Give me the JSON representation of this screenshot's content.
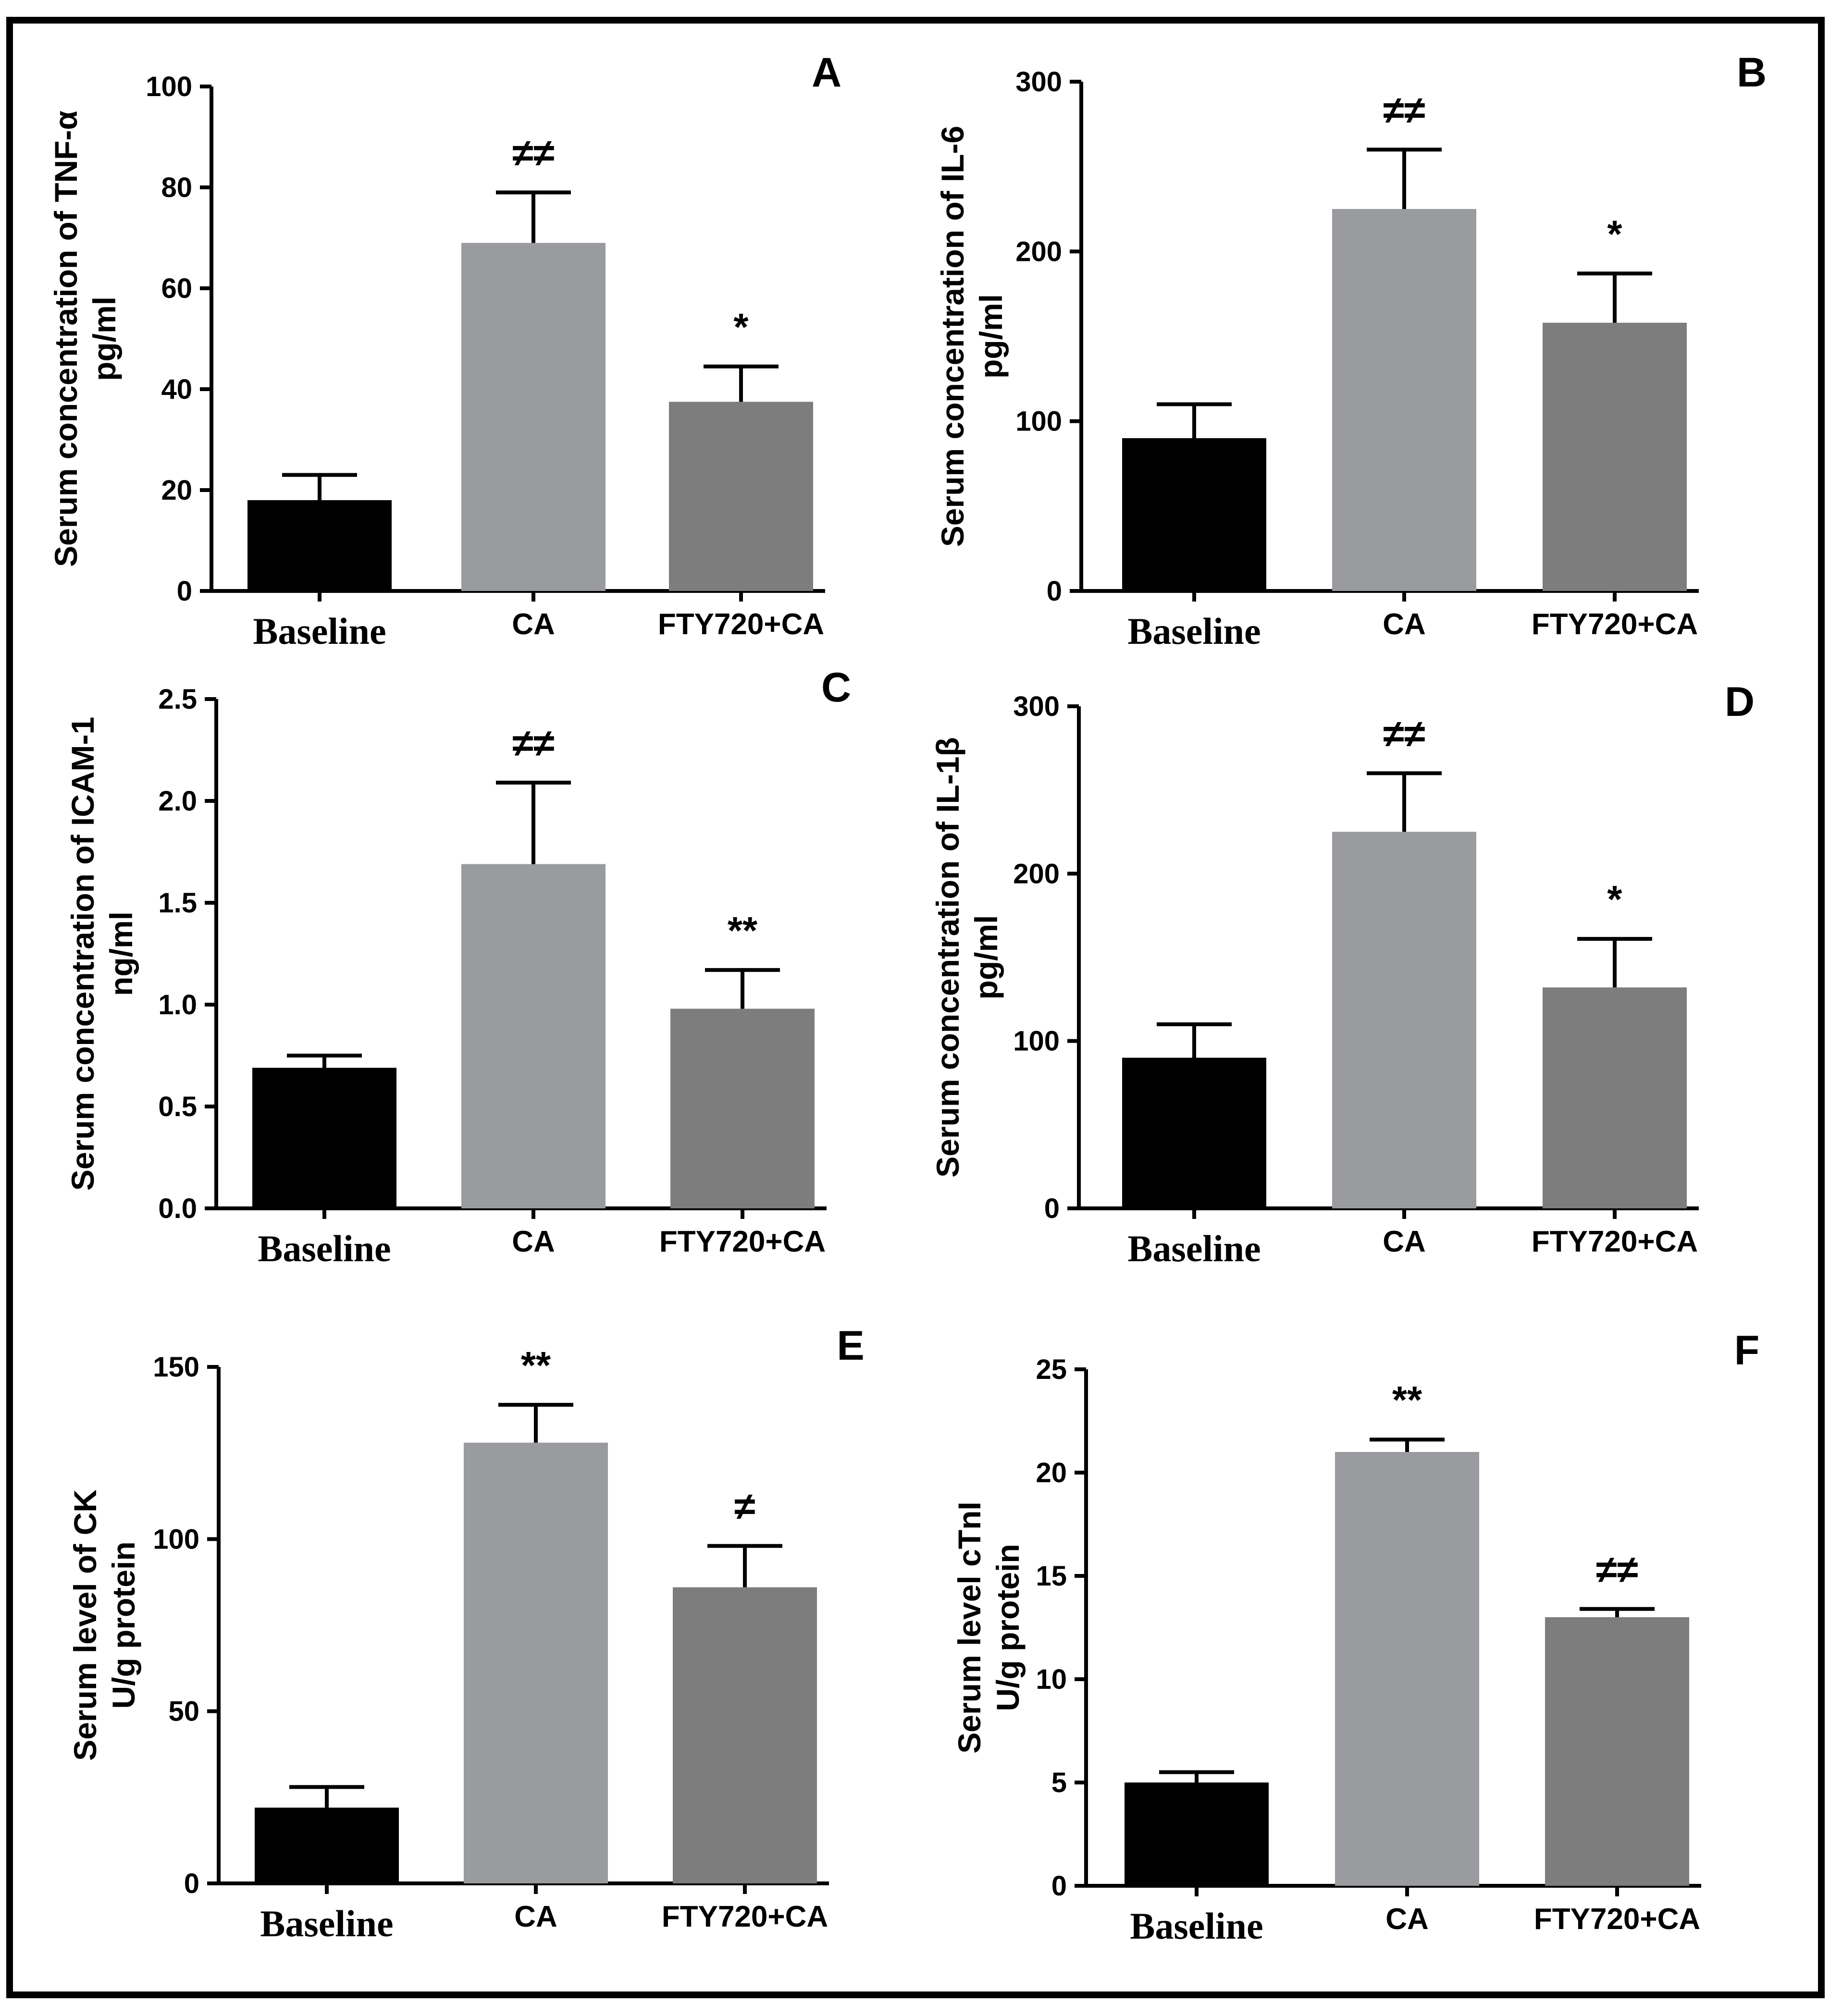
{
  "figure": {
    "ylabel_lines": {
      "A": [
        "Serum concentration of TNF-α",
        "pg/ml"
      ],
      "B": [
        "Serum concentration of IL-6",
        "pg/ml"
      ],
      "C": [
        "Serum concentration of ICAM-1",
        "ng/ml"
      ],
      "D": [
        "Serum concentration of IL-1β",
        "pg/ml"
      ],
      "E": [
        "Serum level of CK",
        "U/g protein"
      ],
      "F": [
        "Serum level cTnI",
        "U/g protein"
      ]
    }
  },
  "chart_data": [
    {
      "panel": "A",
      "type": "bar",
      "categories": [
        "Baseline",
        "CA",
        "FTY720+CA"
      ],
      "values": [
        18,
        69,
        37.5
      ],
      "errors": [
        5,
        10,
        7
      ],
      "significance": [
        "",
        "≠≠",
        "*"
      ],
      "ylabel": "Serum concentration of TNF-α pg/ml",
      "ylim": [
        0,
        100
      ],
      "yticks": [
        0,
        20,
        40,
        60,
        80,
        100
      ],
      "colors": [
        "#000000",
        "#9a9b9e",
        "#7d7d7d"
      ]
    },
    {
      "panel": "B",
      "type": "bar",
      "categories": [
        "Baseline",
        "CA",
        "FTY720+CA"
      ],
      "values": [
        90,
        225,
        158
      ],
      "errors": [
        20,
        35,
        29
      ],
      "significance": [
        "",
        "≠≠",
        "*"
      ],
      "ylabel": "Serum concentration of IL-6 pg/ml",
      "ylim": [
        0,
        300
      ],
      "yticks": [
        0,
        100,
        200,
        300
      ],
      "colors": [
        "#000000",
        "#9a9b9e",
        "#7d7d7d"
      ]
    },
    {
      "panel": "C",
      "type": "bar",
      "categories": [
        "Baseline",
        "CA",
        "FTY720+CA"
      ],
      "values": [
        0.69,
        1.69,
        0.98
      ],
      "errors": [
        0.06,
        0.4,
        0.19
      ],
      "significance": [
        "",
        "≠≠",
        "**"
      ],
      "ylabel": "Serum concentration of ICAM-1 ng/ml",
      "ylim": [
        0,
        2.5
      ],
      "yticks": [
        0.0,
        0.5,
        1.0,
        1.5,
        2.0,
        2.5
      ],
      "yticklabels": [
        "0.0",
        "0.5",
        "1.0",
        "1.5",
        "2.0",
        "2.5"
      ],
      "colors": [
        "#000000",
        "#9a9b9e",
        "#7d7d7d"
      ]
    },
    {
      "panel": "D",
      "type": "bar",
      "categories": [
        "Baseline",
        "CA",
        "FTY720+CA"
      ],
      "values": [
        90,
        225,
        132
      ],
      "errors": [
        20,
        35,
        29
      ],
      "significance": [
        "",
        "≠≠",
        "*"
      ],
      "ylabel": "Serum concentration of IL-1β pg/ml",
      "ylim": [
        0,
        300
      ],
      "yticks": [
        0,
        100,
        200,
        300
      ],
      "colors": [
        "#000000",
        "#9a9b9e",
        "#7d7d7d"
      ]
    },
    {
      "panel": "E",
      "type": "bar",
      "categories": [
        "Baseline",
        "CA",
        "FTY720+CA"
      ],
      "values": [
        22,
        128,
        86
      ],
      "errors": [
        6,
        11,
        12
      ],
      "significance": [
        "",
        "**",
        "≠"
      ],
      "ylabel": "Serum level of CK U/g protein",
      "ylim": [
        0,
        150
      ],
      "yticks": [
        0,
        50,
        100,
        150
      ],
      "colors": [
        "#000000",
        "#9a9b9e",
        "#7d7d7d"
      ]
    },
    {
      "panel": "F",
      "type": "bar",
      "categories": [
        "Baseline",
        "CA",
        "FTY720+CA"
      ],
      "values": [
        5,
        21,
        13
      ],
      "errors": [
        0.5,
        0.6,
        0.4
      ],
      "significance": [
        "",
        "**",
        "≠≠"
      ],
      "ylabel": "Serum level cTnI U/g protein",
      "ylim": [
        0,
        25
      ],
      "yticks": [
        0,
        5,
        10,
        15,
        20,
        25
      ],
      "colors": [
        "#000000",
        "#9a9b9e",
        "#7d7d7d"
      ]
    }
  ]
}
